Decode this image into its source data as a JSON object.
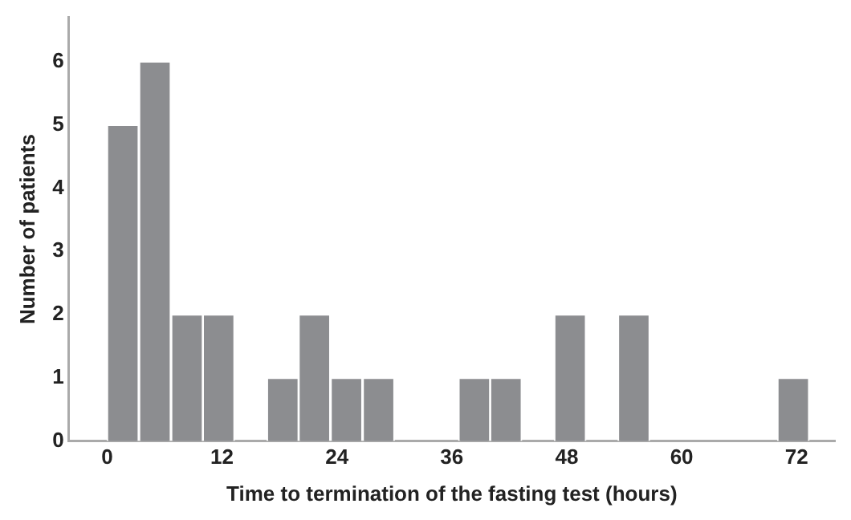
{
  "chart_data": {
    "type": "histogram",
    "xlabel": "Time to termination of the fasting test (hours)",
    "ylabel": "Number of patients",
    "bins": [
      0,
      3.3,
      6.7,
      10,
      13.3,
      16.7,
      20,
      23.3,
      26.7,
      30,
      33.3,
      36.7,
      40,
      43.3,
      46.7,
      50,
      53.3,
      56.7,
      60,
      63.3,
      66.7,
      70,
      73.3
    ],
    "values": [
      5,
      6,
      2,
      2,
      0,
      1,
      2,
      1,
      1,
      0,
      0,
      1,
      1,
      0,
      2,
      0,
      2,
      0,
      0,
      0,
      0,
      1
    ],
    "color": "#8c8d90",
    "xlim": [
      -4,
      76
    ],
    "xticks": [
      0,
      12,
      24,
      36,
      48,
      60,
      72
    ],
    "ylim": [
      0,
      6.7
    ],
    "yticks": [
      0,
      1,
      2,
      3,
      4,
      5,
      6
    ],
    "grid": false,
    "legend": false
  }
}
